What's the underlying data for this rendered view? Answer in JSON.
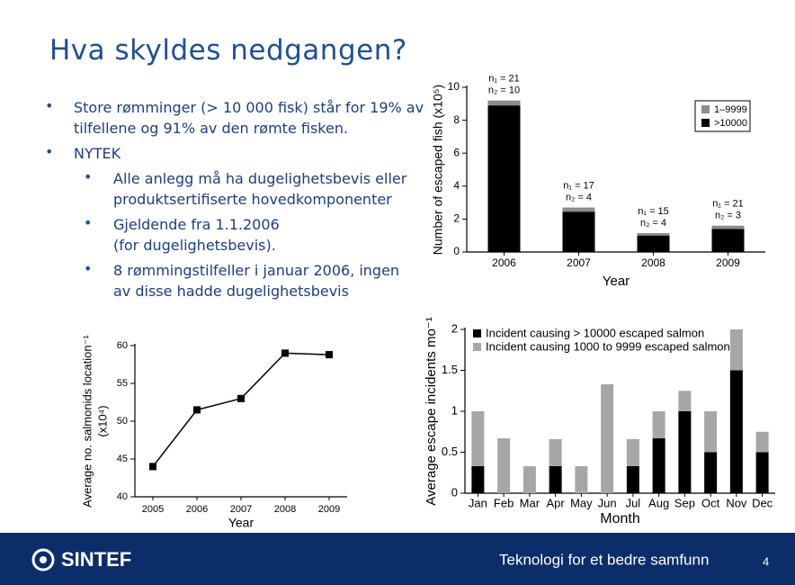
{
  "slide": {
    "title": "Hva skyldes nedgangen?",
    "bullets": [
      {
        "lines": [
          "Store rømminger (> 10 000 fisk) står for 19% av",
          "tilfellene og 91% av den rømte fisken."
        ]
      },
      {
        "lines": [
          "NYTEK"
        ],
        "children": [
          {
            "lines": [
              "Alle anlegg må ha dugelighetsbevis eller",
              "produktsertifiserte hovedkomponenter"
            ]
          },
          {
            "lines": [
              "Gjeldende fra 1.1.2006",
              "(for dugelighetsbevis)."
            ]
          },
          {
            "lines": [
              "8 rømmingstilfeller i januar 2006, ingen",
              "av disse hadde dugelighetsbevis"
            ]
          }
        ]
      }
    ],
    "logo": "SINTEF",
    "tagline": "Teknologi for et bedre samfunn",
    "page": "4"
  },
  "chart_data": [
    {
      "type": "bar",
      "stacked": true,
      "categories": [
        "2006",
        "2007",
        "2008",
        "2009"
      ],
      "series": [
        {
          "name": ">10000",
          "color": "#000000",
          "values": [
            8.9,
            2.45,
            1.0,
            1.4
          ]
        },
        {
          "name": "1–9999",
          "color": "#8c8c8c",
          "values": [
            0.3,
            0.25,
            0.15,
            0.2
          ]
        }
      ],
      "annotations": [
        [
          "n₁ = 21",
          "n₂ = 10"
        ],
        [
          "n₁ = 17",
          "n₂ = 4"
        ],
        [
          "n₁ = 15",
          "n₂ = 4"
        ],
        [
          "n₁ = 21",
          "n₂ = 3"
        ]
      ],
      "xlabel": "Year",
      "ylabel": [
        "Number of escaped fish (x10⁵)"
      ],
      "ylim": [
        0,
        10
      ],
      "yticks": [
        0,
        2,
        4,
        6,
        8,
        10
      ],
      "legend": "upper right"
    },
    {
      "type": "line",
      "categories": [
        "2005",
        "2006",
        "2007",
        "2008",
        "2009"
      ],
      "values": [
        44,
        51.5,
        53,
        59,
        58.8
      ],
      "color": "#000000",
      "xlabel": "Year",
      "ylabel": [
        "Average no. salmonids location⁻¹",
        "(x10⁴)"
      ],
      "ylim": [
        40,
        60
      ],
      "yticks": [
        40,
        45,
        50,
        55,
        60
      ]
    },
    {
      "type": "bar",
      "stacked": true,
      "categories": [
        "Jan",
        "Feb",
        "Mar",
        "Apr",
        "May",
        "Jun",
        "Jul",
        "Aug",
        "Sep",
        "Oct",
        "Nov",
        "Dec"
      ],
      "series": [
        {
          "name": "Incident causing > 10000 escaped salmon",
          "color": "#000000",
          "values": [
            0.33,
            0,
            0,
            0.33,
            0,
            0,
            0.33,
            0.67,
            1,
            0.5,
            1.5,
            0.5
          ]
        },
        {
          "name": "Incident causing 1000 to 9999 escaped salmon",
          "color": "#a6a6a6",
          "values": [
            0.67,
            0.67,
            0.33,
            0.33,
            0.33,
            1.33,
            0.33,
            0.33,
            0.25,
            0.5,
            0.5,
            0.25
          ]
        }
      ],
      "xlabel": "Month",
      "ylabel": [
        "Average escape incidents mo⁻¹"
      ],
      "ylim": [
        0,
        2
      ],
      "yticks": [
        0,
        0.5,
        1,
        1.5,
        2
      ],
      "legend": "upper left"
    }
  ]
}
